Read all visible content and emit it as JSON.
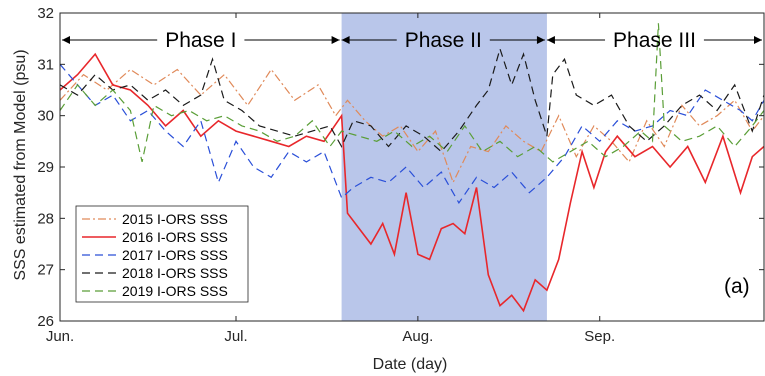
{
  "chart_data": {
    "type": "line",
    "xlabel": "Date (day)",
    "ylabel": "SSS estimated from Model (psu)",
    "ylim": [
      26,
      32
    ],
    "xlim": [
      0,
      120
    ],
    "x_ticks": [
      {
        "x": 0,
        "label": "Jun."
      },
      {
        "x": 30,
        "label": "Jul."
      },
      {
        "x": 61,
        "label": "Aug."
      },
      {
        "x": 92,
        "label": "Sep."
      }
    ],
    "y_ticks": [
      26,
      27,
      28,
      29,
      30,
      31,
      32
    ],
    "panel_label": "(a)",
    "shaded_region": {
      "x_start": 48,
      "x_end": 83,
      "color": "#b9c6ea"
    },
    "phases": [
      {
        "label": "Phase I",
        "x_start": 0,
        "x_end": 48
      },
      {
        "label": "Phase II",
        "x_start": 48,
        "x_end": 83
      },
      {
        "label": "Phase III",
        "x_start": 83,
        "x_end": 120
      }
    ],
    "legend": {
      "placement": "lower-left"
    },
    "series": [
      {
        "name": "2015 I-ORS SSS",
        "color": "#e08a5a",
        "dash": "8,3,2,3",
        "points": [
          [
            0,
            30.3
          ],
          [
            4,
            30.8
          ],
          [
            8,
            30.5
          ],
          [
            12,
            30.9
          ],
          [
            16,
            30.6
          ],
          [
            20,
            30.9
          ],
          [
            24,
            30.4
          ],
          [
            28,
            30.8
          ],
          [
            32,
            30.2
          ],
          [
            36,
            30.9
          ],
          [
            40,
            30.3
          ],
          [
            44,
            30.6
          ],
          [
            47,
            30.0
          ],
          [
            49,
            30.3
          ],
          [
            52,
            29.9
          ],
          [
            55,
            29.6
          ],
          [
            58,
            29.8
          ],
          [
            61,
            29.3
          ],
          [
            64,
            29.7
          ],
          [
            67,
            28.7
          ],
          [
            70,
            29.4
          ],
          [
            73,
            29.3
          ],
          [
            76,
            29.8
          ],
          [
            79,
            29.5
          ],
          [
            82,
            29.3
          ],
          [
            85,
            30.0
          ],
          [
            88,
            29.2
          ],
          [
            91,
            29.8
          ],
          [
            94,
            29.5
          ],
          [
            97,
            29.1
          ],
          [
            100,
            29.9
          ],
          [
            103,
            29.4
          ],
          [
            106,
            30.2
          ],
          [
            109,
            29.8
          ],
          [
            112,
            30.0
          ],
          [
            115,
            30.3
          ],
          [
            118,
            29.7
          ],
          [
            120,
            30.0
          ]
        ]
      },
      {
        "name": "2016 I-ORS SSS",
        "color": "#e8272b",
        "dash": "",
        "points": [
          [
            0,
            30.5
          ],
          [
            3,
            30.8
          ],
          [
            6,
            31.2
          ],
          [
            9,
            30.6
          ],
          [
            12,
            30.5
          ],
          [
            15,
            30.2
          ],
          [
            18,
            29.8
          ],
          [
            21,
            30.1
          ],
          [
            24,
            29.6
          ],
          [
            27,
            29.9
          ],
          [
            30,
            29.7
          ],
          [
            33,
            29.6
          ],
          [
            36,
            29.5
          ],
          [
            39,
            29.4
          ],
          [
            42,
            29.6
          ],
          [
            45,
            29.5
          ],
          [
            48,
            30.0
          ],
          [
            49,
            28.1
          ],
          [
            51,
            27.8
          ],
          [
            53,
            27.5
          ],
          [
            55,
            27.9
          ],
          [
            57,
            27.3
          ],
          [
            59,
            28.5
          ],
          [
            61,
            27.3
          ],
          [
            63,
            27.2
          ],
          [
            65,
            27.8
          ],
          [
            67,
            27.9
          ],
          [
            69,
            27.7
          ],
          [
            71,
            28.6
          ],
          [
            73,
            26.9
          ],
          [
            75,
            26.3
          ],
          [
            77,
            26.5
          ],
          [
            79,
            26.2
          ],
          [
            81,
            26.8
          ],
          [
            83,
            26.6
          ],
          [
            85,
            27.2
          ],
          [
            87,
            28.3
          ],
          [
            89,
            29.3
          ],
          [
            91,
            28.6
          ],
          [
            93,
            29.3
          ],
          [
            95,
            29.6
          ],
          [
            98,
            29.2
          ],
          [
            101,
            29.4
          ],
          [
            104,
            29.0
          ],
          [
            107,
            29.4
          ],
          [
            110,
            28.7
          ],
          [
            113,
            29.6
          ],
          [
            116,
            28.5
          ],
          [
            118,
            29.2
          ],
          [
            120,
            29.4
          ]
        ]
      },
      {
        "name": "2017 I-ORS SSS",
        "color": "#2a4fd8",
        "dash": "8,5",
        "points": [
          [
            0,
            31.0
          ],
          [
            3,
            30.6
          ],
          [
            6,
            30.2
          ],
          [
            9,
            30.4
          ],
          [
            12,
            29.9
          ],
          [
            15,
            30.1
          ],
          [
            18,
            29.7
          ],
          [
            21,
            29.4
          ],
          [
            24,
            29.9
          ],
          [
            27,
            28.7
          ],
          [
            30,
            29.5
          ],
          [
            33,
            29.0
          ],
          [
            36,
            28.8
          ],
          [
            39,
            29.3
          ],
          [
            42,
            29.1
          ],
          [
            45,
            29.3
          ],
          [
            48,
            28.4
          ],
          [
            50,
            28.6
          ],
          [
            53,
            28.8
          ],
          [
            56,
            28.7
          ],
          [
            59,
            29.0
          ],
          [
            62,
            28.6
          ],
          [
            65,
            28.9
          ],
          [
            68,
            28.3
          ],
          [
            71,
            28.8
          ],
          [
            74,
            28.6
          ],
          [
            77,
            28.9
          ],
          [
            80,
            28.5
          ],
          [
            83,
            28.8
          ],
          [
            86,
            29.2
          ],
          [
            89,
            29.8
          ],
          [
            92,
            29.5
          ],
          [
            95,
            29.9
          ],
          [
            98,
            29.7
          ],
          [
            101,
            29.8
          ],
          [
            104,
            30.1
          ],
          [
            107,
            30.0
          ],
          [
            110,
            30.5
          ],
          [
            113,
            30.3
          ],
          [
            116,
            30.1
          ],
          [
            118,
            29.9
          ],
          [
            120,
            30.3
          ]
        ]
      },
      {
        "name": "2018 I-ORS SSS",
        "color": "#1a1a1a",
        "dash": "8,5",
        "points": [
          [
            0,
            30.6
          ],
          [
            3,
            30.4
          ],
          [
            6,
            30.8
          ],
          [
            9,
            30.5
          ],
          [
            12,
            30.6
          ],
          [
            15,
            30.3
          ],
          [
            18,
            30.5
          ],
          [
            21,
            30.2
          ],
          [
            24,
            30.4
          ],
          [
            26,
            31.1
          ],
          [
            28,
            30.3
          ],
          [
            31,
            30.1
          ],
          [
            34,
            29.8
          ],
          [
            37,
            29.7
          ],
          [
            40,
            29.6
          ],
          [
            43,
            29.7
          ],
          [
            46,
            29.8
          ],
          [
            48,
            29.4
          ],
          [
            50,
            29.9
          ],
          [
            53,
            29.8
          ],
          [
            56,
            29.4
          ],
          [
            59,
            29.8
          ],
          [
            62,
            29.6
          ],
          [
            65,
            29.3
          ],
          [
            68,
            29.7
          ],
          [
            71,
            30.2
          ],
          [
            73,
            30.5
          ],
          [
            75,
            31.3
          ],
          [
            77,
            30.6
          ],
          [
            79,
            31.2
          ],
          [
            81,
            30.3
          ],
          [
            83,
            29.6
          ],
          [
            84,
            30.8
          ],
          [
            86,
            31.1
          ],
          [
            88,
            30.4
          ],
          [
            91,
            30.2
          ],
          [
            94,
            30.4
          ],
          [
            97,
            29.8
          ],
          [
            100,
            29.5
          ],
          [
            103,
            29.8
          ],
          [
            106,
            30.2
          ],
          [
            109,
            30.4
          ],
          [
            112,
            30.1
          ],
          [
            115,
            30.6
          ],
          [
            118,
            29.7
          ],
          [
            120,
            30.4
          ]
        ]
      },
      {
        "name": "2019 I-ORS SSS",
        "color": "#5a9e37",
        "dash": "8,5",
        "points": [
          [
            0,
            30.1
          ],
          [
            3,
            30.6
          ],
          [
            6,
            30.2
          ],
          [
            9,
            30.5
          ],
          [
            12,
            30.1
          ],
          [
            14,
            29.1
          ],
          [
            16,
            30.2
          ],
          [
            19,
            30.0
          ],
          [
            22,
            30.1
          ],
          [
            25,
            29.9
          ],
          [
            28,
            30.0
          ],
          [
            31,
            29.8
          ],
          [
            34,
            29.7
          ],
          [
            37,
            29.5
          ],
          [
            40,
            29.6
          ],
          [
            43,
            29.9
          ],
          [
            46,
            29.4
          ],
          [
            48,
            29.7
          ],
          [
            51,
            29.6
          ],
          [
            54,
            29.5
          ],
          [
            57,
            29.7
          ],
          [
            60,
            29.4
          ],
          [
            63,
            29.6
          ],
          [
            66,
            29.3
          ],
          [
            69,
            29.8
          ],
          [
            72,
            29.3
          ],
          [
            75,
            29.5
          ],
          [
            78,
            29.2
          ],
          [
            81,
            29.4
          ],
          [
            84,
            29.1
          ],
          [
            87,
            29.3
          ],
          [
            90,
            29.5
          ],
          [
            93,
            29.2
          ],
          [
            96,
            29.4
          ],
          [
            99,
            29.7
          ],
          [
            101,
            29.5
          ],
          [
            102,
            31.8
          ],
          [
            103,
            29.8
          ],
          [
            106,
            29.5
          ],
          [
            109,
            29.6
          ],
          [
            112,
            29.8
          ],
          [
            115,
            29.4
          ],
          [
            118,
            29.8
          ],
          [
            120,
            30.1
          ]
        ]
      }
    ]
  }
}
